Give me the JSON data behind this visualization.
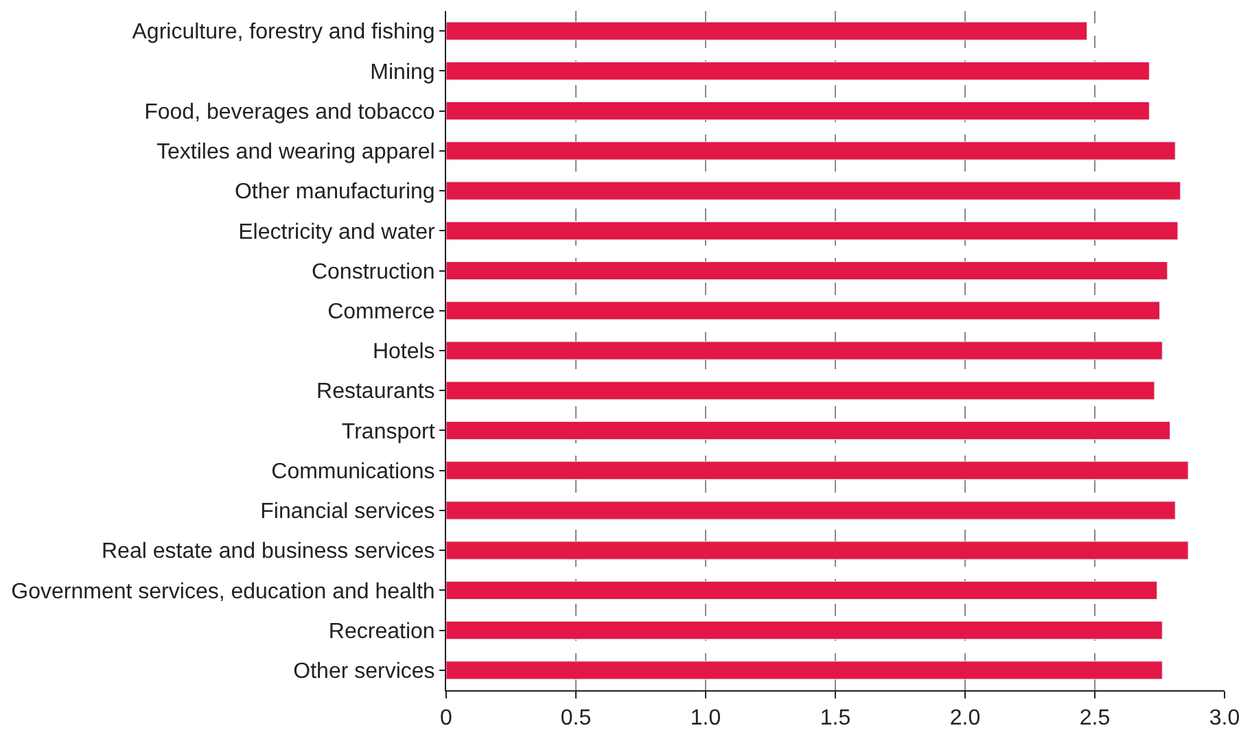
{
  "chart_data": {
    "type": "bar",
    "orientation": "horizontal",
    "categories": [
      "Agriculture, forestry and fishing",
      "Mining",
      "Food, beverages and tobacco",
      "Textiles and wearing apparel",
      "Other manufacturing",
      "Electricity and water",
      "Construction",
      "Commerce",
      "Hotels",
      "Restaurants",
      "Transport",
      "Communications",
      "Financial services",
      "Real estate and business services",
      "Government services, education and health",
      "Recreation",
      "Other services"
    ],
    "values": [
      2.47,
      2.71,
      2.71,
      2.81,
      2.83,
      2.82,
      2.78,
      2.75,
      2.76,
      2.73,
      2.79,
      2.86,
      2.81,
      2.86,
      2.74,
      2.76,
      2.76
    ],
    "color": "#e31745",
    "xlim": [
      0,
      3.0
    ],
    "xticks": [
      0,
      {
        "value": 0.5,
        "label": "0.5"
      },
      {
        "value": 1.0,
        "label": "1.0"
      },
      {
        "value": 1.5,
        "label": "1.5"
      },
      {
        "value": 2.0,
        "label": "2.0"
      },
      {
        "value": 2.5,
        "label": "2.5"
      },
      {
        "value": 3.0,
        "label": "3.0"
      }
    ],
    "grid": "x"
  }
}
